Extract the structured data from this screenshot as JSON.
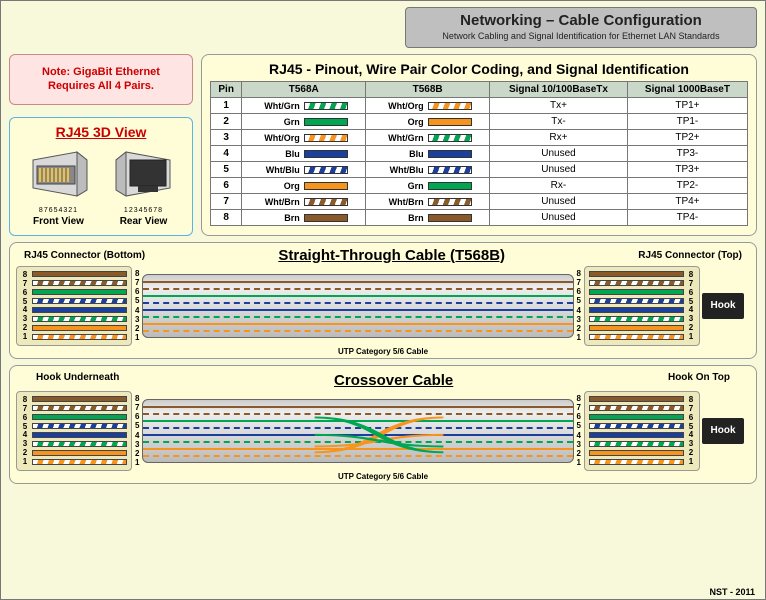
{
  "header": {
    "title": "Networking – Cable Configuration",
    "subtitle": "Network Cabling and Signal Identification for Ethernet LAN Standards"
  },
  "note": "Note: GigaBit Ethernet Requires All 4 Pairs.",
  "view3d": {
    "title": "RJ45 3D View",
    "front_label": "Front\nView",
    "rear_label": "Rear\nView",
    "front_pins": "87654321",
    "rear_pins": "12345678"
  },
  "table": {
    "title": "RJ45 -  Pinout, Wire Pair Color Coding, and Signal Identification",
    "headers": [
      "Pin",
      "T568A",
      "T568B",
      "Signal 10/100BaseTx",
      "Signal 1000BaseT"
    ],
    "colors": {
      "green": "#00a651",
      "orange": "#f7941d",
      "blue": "#1b3f9c",
      "brown": "#8b5a2b",
      "white": "#ffffff"
    },
    "rows": [
      {
        "pin": "1",
        "a_lbl": "Wht/Grn",
        "a_c1": "white",
        "a_c2": "green",
        "b_lbl": "Wht/Org",
        "b_c1": "white",
        "b_c2": "orange",
        "s100": "Tx+",
        "s1000": "TP1+"
      },
      {
        "pin": "2",
        "a_lbl": "Grn",
        "a_c1": "green",
        "a_c2": "green",
        "b_lbl": "Org",
        "b_c1": "orange",
        "b_c2": "orange",
        "s100": "Tx-",
        "s1000": "TP1-"
      },
      {
        "pin": "3",
        "a_lbl": "Wht/Org",
        "a_c1": "white",
        "a_c2": "orange",
        "b_lbl": "Wht/Grn",
        "b_c1": "white",
        "b_c2": "green",
        "s100": "Rx+",
        "s1000": "TP2+"
      },
      {
        "pin": "4",
        "a_lbl": "Blu",
        "a_c1": "blue",
        "a_c2": "blue",
        "b_lbl": "Blu",
        "b_c1": "blue",
        "b_c2": "blue",
        "s100": "Unused",
        "s1000": "TP3-"
      },
      {
        "pin": "5",
        "a_lbl": "Wht/Blu",
        "a_c1": "white",
        "a_c2": "blue",
        "b_lbl": "Wht/Blu",
        "b_c1": "white",
        "b_c2": "blue",
        "s100": "Unused",
        "s1000": "TP3+"
      },
      {
        "pin": "6",
        "a_lbl": "Org",
        "a_c1": "orange",
        "a_c2": "orange",
        "b_lbl": "Grn",
        "b_c1": "green",
        "b_c2": "green",
        "s100": "Rx-",
        "s1000": "TP2-"
      },
      {
        "pin": "7",
        "a_lbl": "Wht/Brn",
        "a_c1": "white",
        "a_c2": "brown",
        "b_lbl": "Wht/Brn",
        "b_c1": "white",
        "b_c2": "brown",
        "s100": "Unused",
        "s1000": "TP4+"
      },
      {
        "pin": "8",
        "a_lbl": "Brn",
        "a_c1": "brown",
        "a_c2": "brown",
        "b_lbl": "Brn",
        "b_c1": "brown",
        "b_c2": "brown",
        "s100": "Unused",
        "s1000": "TP4-"
      }
    ]
  },
  "cable": {
    "straight": {
      "title": "Straight-Through Cable (T568B)",
      "left_label": "RJ45 Connector (Bottom)",
      "right_label": "RJ45 Connector (Top)"
    },
    "crossover": {
      "title": "Crossover Cable",
      "left_label": "Hook Underneath",
      "right_label": "Hook On Top"
    },
    "hook_label": "Hook",
    "tube_label": "UTP Category 5/6 Cable",
    "pin_order_bottom": [
      "8",
      "7",
      "6",
      "5",
      "4",
      "3",
      "2",
      "1"
    ],
    "t568b_colors_bottom_to_top": [
      {
        "c1": "brown",
        "c2": "brown"
      },
      {
        "c1": "white",
        "c2": "brown"
      },
      {
        "c1": "green",
        "c2": "green"
      },
      {
        "c1": "white",
        "c2": "blue"
      },
      {
        "c1": "blue",
        "c2": "blue"
      },
      {
        "c1": "white",
        "c2": "green"
      },
      {
        "c1": "orange",
        "c2": "orange"
      },
      {
        "c1": "white",
        "c2": "orange"
      }
    ]
  },
  "footer": "NST - 2011"
}
